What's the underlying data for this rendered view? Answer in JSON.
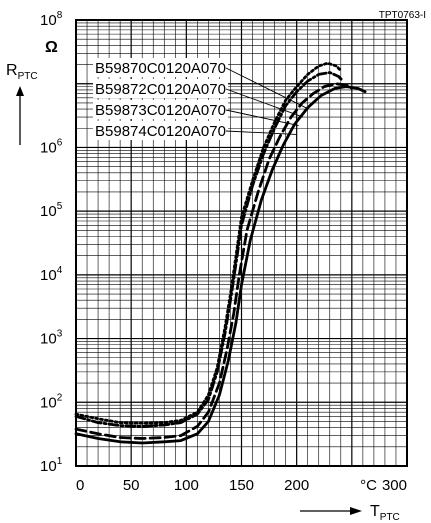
{
  "chart_data": {
    "type": "line",
    "id_label": "TPT0763-I",
    "y_axis": {
      "label_main": "R",
      "label_sub": "PTC",
      "unit": "Ω",
      "scale": "log",
      "range": [
        10,
        100000000
      ],
      "ticks": [
        {
          "base": "10",
          "exp": "1"
        },
        {
          "base": "10",
          "exp": "2"
        },
        {
          "base": "10",
          "exp": "3"
        },
        {
          "base": "10",
          "exp": "4"
        },
        {
          "base": "10",
          "exp": "5"
        },
        {
          "base": "10",
          "exp": "6"
        },
        {
          "base": "10",
          "exp": "8"
        }
      ]
    },
    "x_axis": {
      "label_main": "T",
      "label_sub": "PTC",
      "unit": "°C",
      "range": [
        0,
        300
      ],
      "ticks": [
        "0",
        "50",
        "100",
        "150",
        "200",
        "300"
      ]
    },
    "grid": true,
    "legend_position": "top-right",
    "series": [
      {
        "name": "B59870C0120A070",
        "style": "dotted",
        "points": [
          [
            0,
            65
          ],
          [
            20,
            55
          ],
          [
            40,
            48
          ],
          [
            60,
            47
          ],
          [
            80,
            48
          ],
          [
            95,
            52
          ],
          [
            110,
            70
          ],
          [
            120,
            130
          ],
          [
            128,
            350
          ],
          [
            135,
            1500
          ],
          [
            140,
            5000
          ],
          [
            145,
            20000
          ],
          [
            150,
            80000
          ],
          [
            160,
            300000
          ],
          [
            170,
            1000000
          ],
          [
            180,
            2500000
          ],
          [
            190,
            5500000
          ],
          [
            200,
            9000000
          ],
          [
            210,
            14000000
          ],
          [
            220,
            19000000
          ],
          [
            228,
            21000000
          ],
          [
            236,
            19000000
          ],
          [
            240,
            16000000
          ]
        ]
      },
      {
        "name": "B59872C0120A070",
        "style": "dashed-dot",
        "points": [
          [
            0,
            60
          ],
          [
            20,
            48
          ],
          [
            40,
            43
          ],
          [
            60,
            42
          ],
          [
            80,
            44
          ],
          [
            95,
            48
          ],
          [
            110,
            65
          ],
          [
            120,
            110
          ],
          [
            128,
            300
          ],
          [
            135,
            1200
          ],
          [
            140,
            4000
          ],
          [
            145,
            15000
          ],
          [
            150,
            60000
          ],
          [
            160,
            250000
          ],
          [
            170,
            800000
          ],
          [
            180,
            2000000
          ],
          [
            190,
            4500000
          ],
          [
            200,
            7500000
          ],
          [
            210,
            11000000
          ],
          [
            220,
            14000000
          ],
          [
            230,
            15000000
          ],
          [
            238,
            13000000
          ],
          [
            242,
            11000000
          ]
        ]
      },
      {
        "name": "B59873C0120A070",
        "style": "dashed",
        "points": [
          [
            0,
            38
          ],
          [
            20,
            32
          ],
          [
            40,
            28
          ],
          [
            60,
            27
          ],
          [
            80,
            28
          ],
          [
            95,
            30
          ],
          [
            110,
            42
          ],
          [
            120,
            70
          ],
          [
            130,
            200
          ],
          [
            137,
            700
          ],
          [
            143,
            2500
          ],
          [
            148,
            10000
          ],
          [
            155,
            50000
          ],
          [
            165,
            200000
          ],
          [
            175,
            650000
          ],
          [
            185,
            1500000
          ],
          [
            195,
            3000000
          ],
          [
            205,
            5000000
          ],
          [
            215,
            7000000
          ],
          [
            225,
            9000000
          ],
          [
            235,
            10000000
          ],
          [
            245,
            9500000
          ],
          [
            250,
            8500000
          ]
        ]
      },
      {
        "name": "B59874C0120A070",
        "style": "solid",
        "points": [
          [
            0,
            32
          ],
          [
            20,
            27
          ],
          [
            40,
            24
          ],
          [
            60,
            23
          ],
          [
            80,
            24
          ],
          [
            95,
            25
          ],
          [
            110,
            32
          ],
          [
            120,
            50
          ],
          [
            130,
            130
          ],
          [
            138,
            450
          ],
          [
            145,
            1800
          ],
          [
            150,
            7000
          ],
          [
            158,
            35000
          ],
          [
            168,
            150000
          ],
          [
            178,
            450000
          ],
          [
            188,
            1100000
          ],
          [
            198,
            2300000
          ],
          [
            210,
            4200000
          ],
          [
            222,
            6500000
          ],
          [
            235,
            8500000
          ],
          [
            245,
            9000000
          ],
          [
            255,
            8500000
          ],
          [
            262,
            7500000
          ]
        ]
      }
    ]
  }
}
